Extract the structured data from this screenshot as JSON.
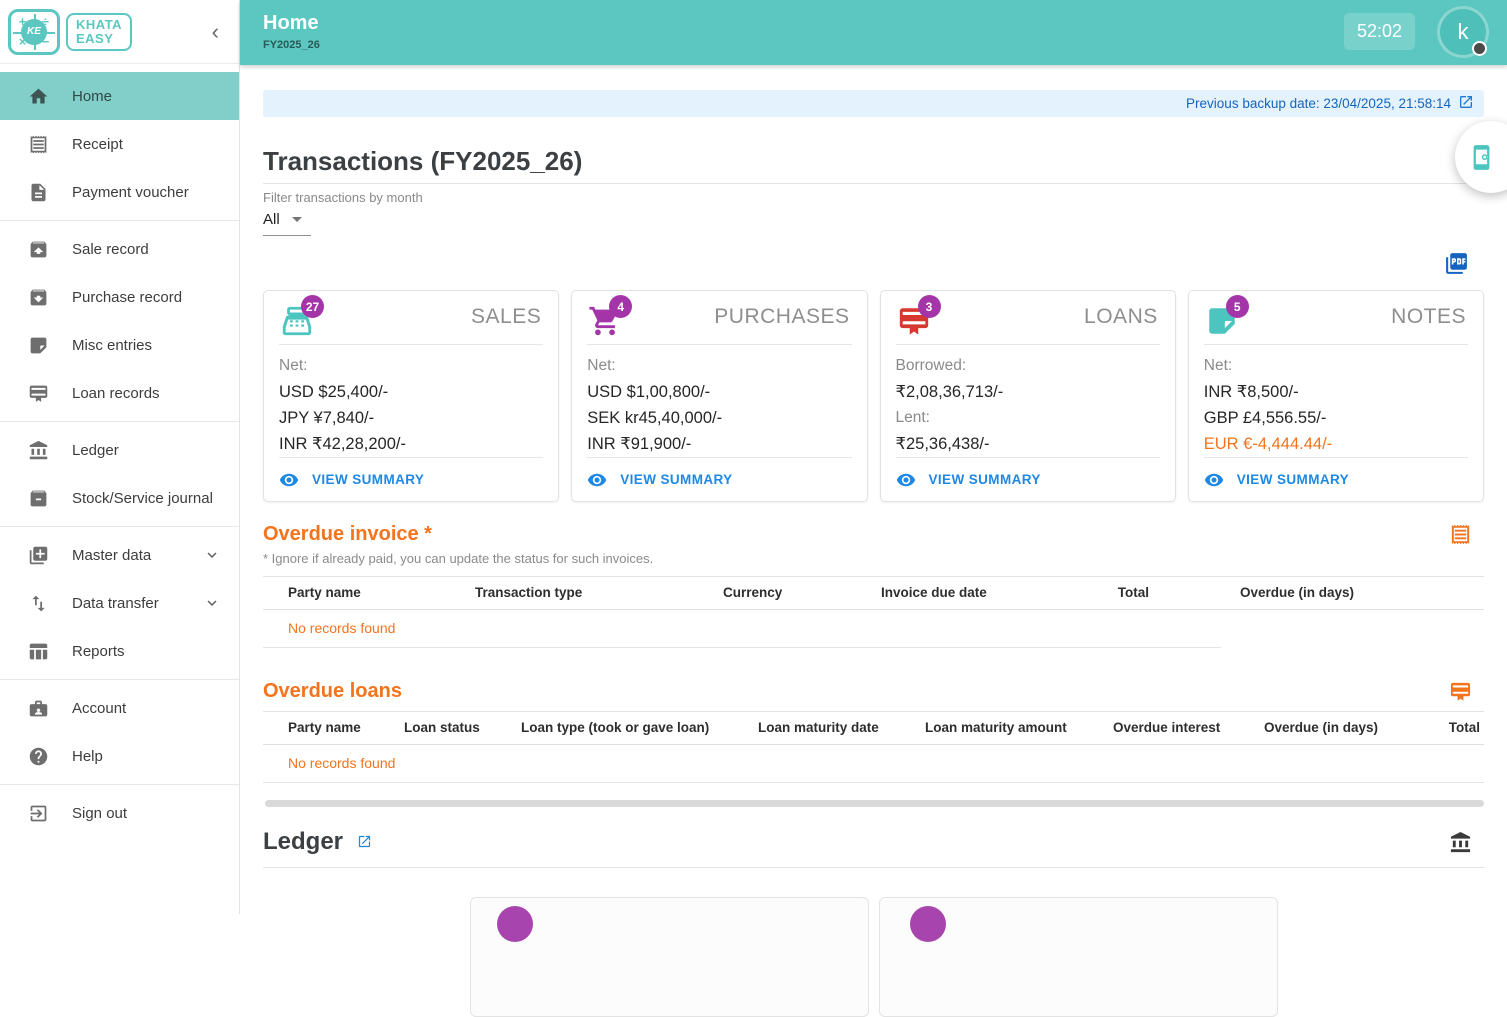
{
  "colors": {
    "teal": "#5bc7c0",
    "orange": "#f4731d",
    "link_blue": "#1e88e5",
    "badge_purple": "#a435a9",
    "loans_red": "#d6382f",
    "banner_blue": "#1565c0"
  },
  "brand": {
    "name_line1": "KHATA",
    "name_line2": "EASY",
    "monogram": "KE"
  },
  "sidebar": {
    "groups": [
      [
        {
          "label": "Home",
          "icon": "home",
          "active": true
        },
        {
          "label": "Receipt",
          "icon": "receipt"
        },
        {
          "label": "Payment voucher",
          "icon": "document"
        }
      ],
      [
        {
          "label": "Sale record",
          "icon": "box-up"
        },
        {
          "label": "Purchase record",
          "icon": "box-down"
        },
        {
          "label": "Misc entries",
          "icon": "note"
        },
        {
          "label": "Loan records",
          "icon": "loan"
        }
      ],
      [
        {
          "label": "Ledger",
          "icon": "bank"
        },
        {
          "label": "Stock/Service journal",
          "icon": "stock-box"
        }
      ],
      [
        {
          "label": "Master data",
          "icon": "library-add",
          "expandable": true
        },
        {
          "label": "Data transfer",
          "icon": "import-export",
          "expandable": true
        },
        {
          "label": "Reports",
          "icon": "table-chart"
        }
      ],
      [
        {
          "label": "Account",
          "icon": "badge"
        },
        {
          "label": "Help",
          "icon": "help"
        }
      ],
      [
        {
          "label": "Sign out",
          "icon": "logout"
        }
      ]
    ]
  },
  "header": {
    "title": "Home",
    "subtitle": "FY2025_26",
    "timer": "52:02",
    "avatar_initial": "k"
  },
  "backup_banner": {
    "text": "Previous backup date: 23/04/2025, 21:58:14",
    "icon": "open-in-new"
  },
  "transactions": {
    "title": "Transactions (FY2025_26)",
    "filter_label": "Filter transactions by month",
    "filter_value": "All",
    "export_icon": "pdf",
    "cards": [
      {
        "title": "SALES",
        "badge": "27",
        "icon": "cash-register",
        "icon_color": "#4cc4bf",
        "lines": [
          {
            "kind": "label",
            "text": "Net:"
          },
          {
            "kind": "value",
            "text": "USD $25,400/-"
          },
          {
            "kind": "value",
            "text": "JPY ¥7,840/-"
          },
          {
            "kind": "value",
            "text": "INR ₹42,28,200/-"
          }
        ],
        "action": "VIEW SUMMARY"
      },
      {
        "title": "PURCHASES",
        "badge": "4",
        "icon": "cart",
        "icon_color": "#a435a9",
        "lines": [
          {
            "kind": "label",
            "text": "Net:"
          },
          {
            "kind": "value",
            "text": "USD $1,00,800/-"
          },
          {
            "kind": "value",
            "text": "SEK kr45,40,000/-"
          },
          {
            "kind": "value",
            "text": "INR ₹91,900/-"
          }
        ],
        "action": "VIEW SUMMARY"
      },
      {
        "title": "LOANS",
        "badge": "3",
        "icon": "loan",
        "icon_color": "#d6382f",
        "lines": [
          {
            "kind": "label",
            "text": "Borrowed:"
          },
          {
            "kind": "value",
            "text": "₹2,08,36,713/-"
          },
          {
            "kind": "label",
            "text": "Lent:"
          },
          {
            "kind": "value",
            "text": "₹25,36,438/-"
          }
        ],
        "action": "VIEW SUMMARY"
      },
      {
        "title": "NOTES",
        "badge": "5",
        "icon": "note",
        "icon_color": "#4cc4bf",
        "lines": [
          {
            "kind": "label",
            "text": "Net:"
          },
          {
            "kind": "value",
            "text": "INR ₹8,500/-"
          },
          {
            "kind": "value",
            "text": "GBP £4,556.55/-"
          },
          {
            "kind": "value",
            "text": "EUR €-4,444.44/-",
            "negative": true
          }
        ],
        "action": "VIEW SUMMARY"
      }
    ]
  },
  "overdue_invoice": {
    "title": "Overdue invoice *",
    "note": "* Ignore if already paid, you can update the status for such invoices.",
    "icon": "receipt",
    "columns": [
      "Party name",
      "Transaction type",
      "Currency",
      "Invoice due date",
      "Total",
      "Overdue (in days)"
    ],
    "empty": "No records found"
  },
  "overdue_loans": {
    "title": "Overdue loans",
    "icon": "loan",
    "columns": [
      "Party name",
      "Loan status",
      "Loan type (took or gave loan)",
      "Loan maturity date",
      "Loan maturity amount",
      "Overdue interest",
      "Overdue (in days)",
      "Total"
    ],
    "empty": "No records found"
  },
  "ledger": {
    "title": "Ledger",
    "open_icon": "open-in-new",
    "section_icon": "bank"
  }
}
